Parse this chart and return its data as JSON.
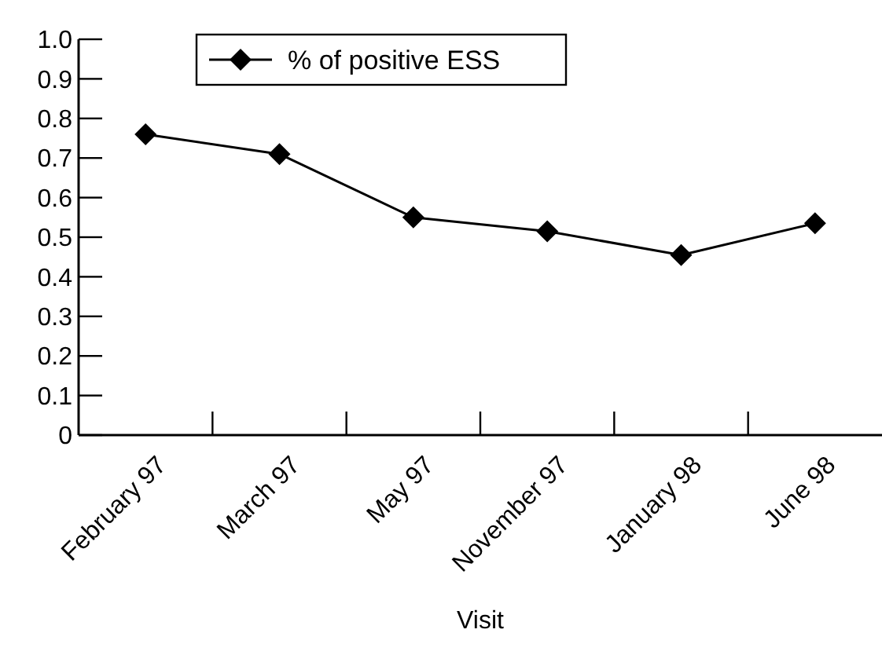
{
  "chart_data": {
    "type": "line",
    "xlabel": "Visit",
    "categories": [
      "February 97",
      "March 97",
      "May 97",
      "November 97",
      "January 98",
      "June 98"
    ],
    "series": [
      {
        "name": "% of positive ESS",
        "color": "#000000",
        "values": [
          0.76,
          0.71,
          0.55,
          0.515,
          0.455,
          0.535
        ]
      }
    ],
    "ylim": [
      0,
      1
    ],
    "yticks": [
      0,
      0.1,
      0.2,
      0.3,
      0.4,
      0.5,
      0.6,
      0.7,
      0.8,
      0.9,
      {
        "value": 1,
        "label": "1.0"
      }
    ],
    "marker": "diamond",
    "line_style": "solid",
    "legend": "top",
    "grid": false
  }
}
